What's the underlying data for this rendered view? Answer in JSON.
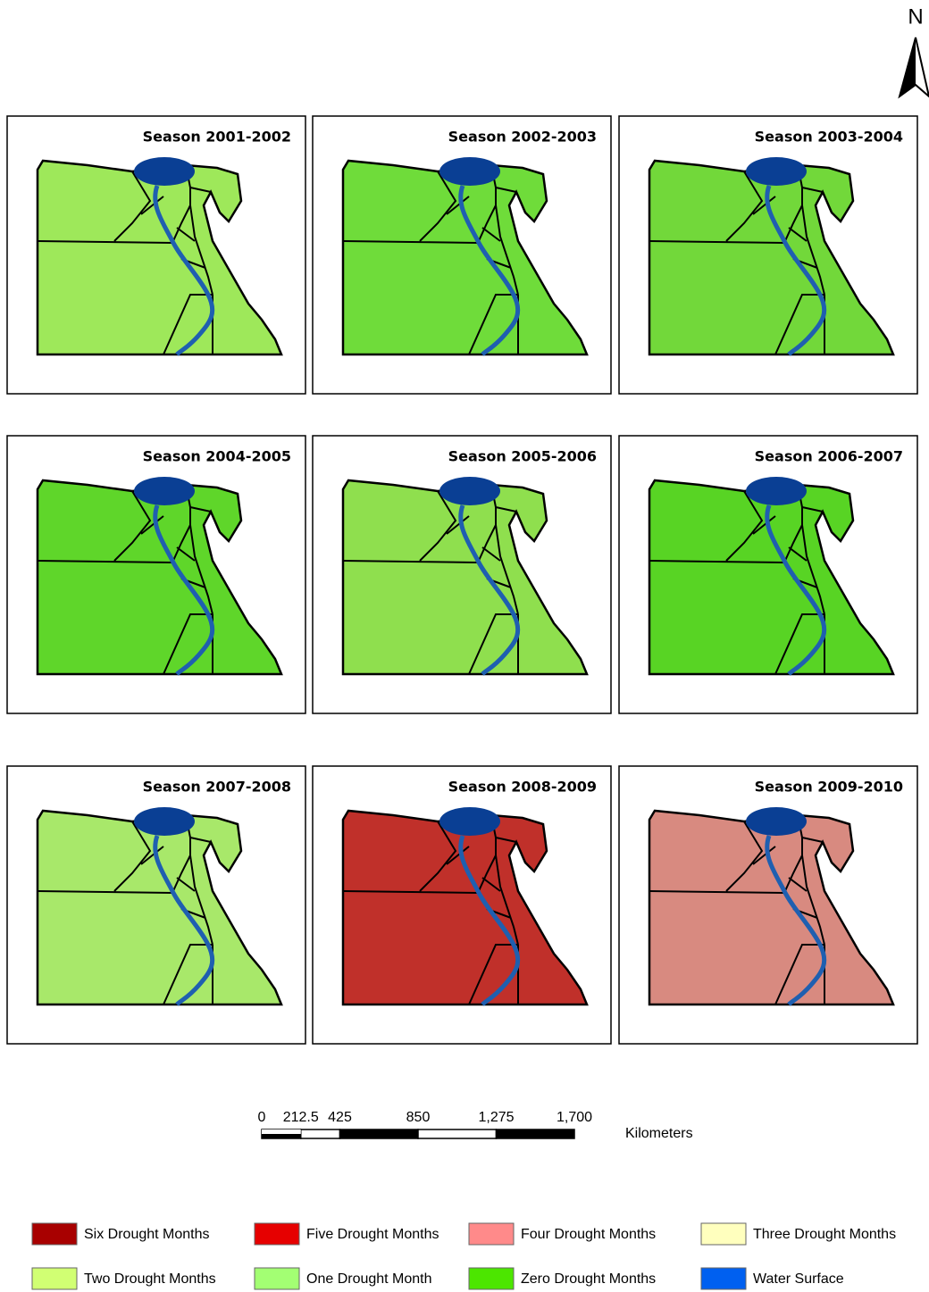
{
  "north": "N",
  "panels": [
    {
      "title": "Season 2001-2002",
      "color": "#9ee85a"
    },
    {
      "title": "Season 2002-2003",
      "color": "#6fdc3a"
    },
    {
      "title": "Season 2003-2004",
      "color": "#72d83a"
    },
    {
      "title": "Season 2004-2005",
      "color": "#5fd62a"
    },
    {
      "title": "Season 2005-2006",
      "color": "#8fdf4e"
    },
    {
      "title": "Season 2006-2007",
      "color": "#58d424"
    },
    {
      "title": "Season 2007-2008",
      "color": "#a8e86a"
    },
    {
      "title": "Season 2008-2009",
      "color": "#c0302a"
    },
    {
      "title": "Season 2009-2010",
      "color": "#d88a80"
    }
  ],
  "scale_bar": {
    "unit": "Kilometers",
    "ticks": [
      0,
      212.5,
      425,
      850,
      {
        "value": 1275,
        "label": "1,275"
      },
      {
        "value": 1700,
        "label": "1,700"
      }
    ]
  },
  "legend": [
    {
      "label": "Six Drought Months",
      "color": "#a80000"
    },
    {
      "label": "Five Drought Months",
      "color": "#e60000"
    },
    {
      "label": "Four Drought Months",
      "color": "#ff8a8a"
    },
    {
      "label": "Three Drought Months",
      "color": "#ffffbe"
    },
    {
      "label": "Two Drought Months",
      "color": "#d1ff73"
    },
    {
      "label": "One Drought Month",
      "color": "#a3ff73"
    },
    {
      "label": "Zero Drought Months",
      "color": "#4ce600"
    },
    {
      "label": "Water Surface",
      "color": "#0060f0"
    }
  ]
}
